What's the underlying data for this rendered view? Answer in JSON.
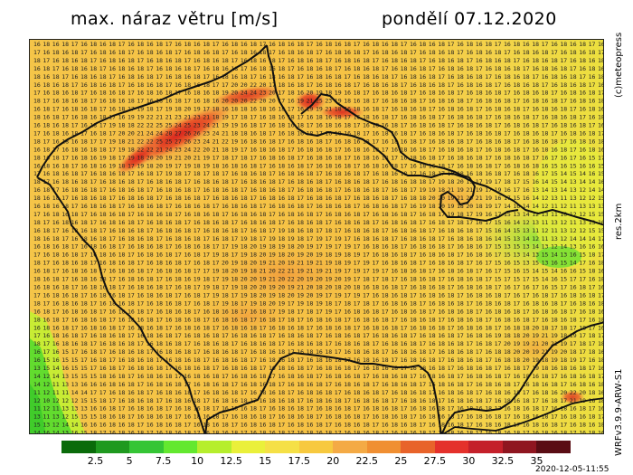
{
  "header": {
    "title": "max. náraz větru [m/s]",
    "date": "pondělí 07.12.2020"
  },
  "side_labels": {
    "copyright": "(c)meteopress",
    "resolution": "res.2km",
    "model": "WRFv3.9.9-ARW-S1"
  },
  "timestamp": "2020-12-05-11:55",
  "legend": {
    "labels": [
      "2.5",
      "5",
      "7.5",
      "10",
      "12.5",
      "15",
      "17.5",
      "20",
      "22.5",
      "25",
      "27.5",
      "30",
      "32.5",
      "35"
    ],
    "colors": [
      "#0a6b0a",
      "#1f991f",
      "#35c535",
      "#63e82f",
      "#b6ee2d",
      "#eaf03a",
      "#f5e046",
      "#f7c93f",
      "#f4aa45",
      "#f08f32",
      "#e8632a",
      "#e4312b",
      "#c4202a",
      "#8f1620",
      "#5a0d14"
    ]
  },
  "map": {
    "region": "Česká republika",
    "variable": "maximum wind gust",
    "unit": "m/s"
  }
}
